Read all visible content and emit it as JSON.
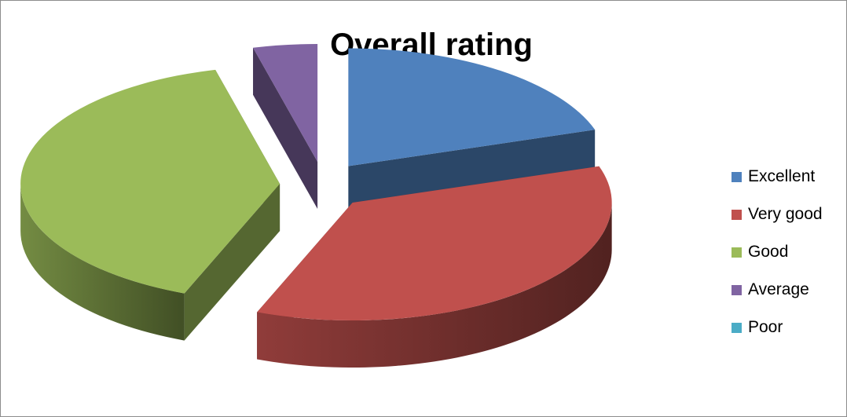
{
  "chart_data": {
    "type": "pie",
    "title": "Overall rating",
    "style": "3d-exploded",
    "categories": [
      "Excellent",
      "Very good",
      "Good",
      "Average",
      "Poor"
    ],
    "values": [
      20,
      36,
      40,
      4,
      0
    ],
    "colors": [
      "#4f81bd",
      "#c0504d",
      "#9bbb59",
      "#8064a2",
      "#4bacc6"
    ],
    "legend": "right"
  }
}
